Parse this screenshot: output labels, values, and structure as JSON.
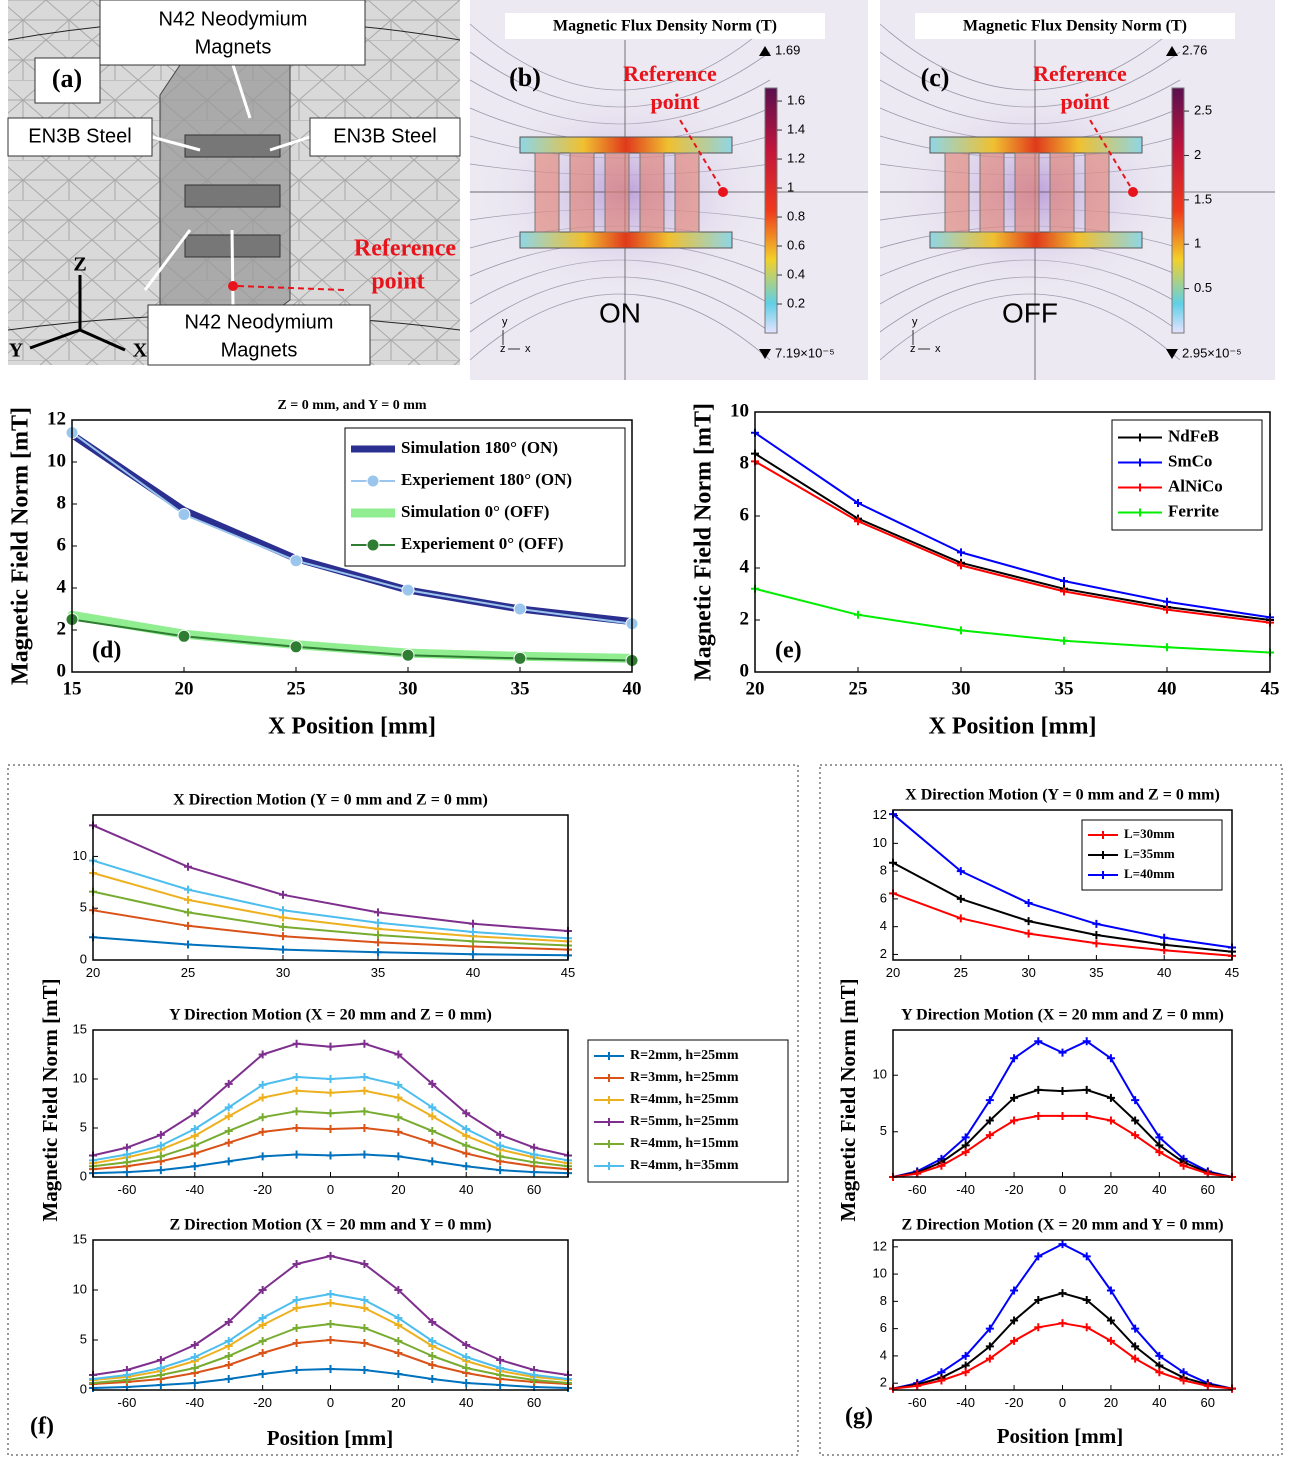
{
  "figure": {
    "a": {
      "label": "(a)",
      "magnets_top": [
        "N42 Neodymium",
        "Magnets"
      ],
      "steel_left": "EN3B Steel",
      "steel_right": "EN3B Steel",
      "magnets_bottom": [
        "N42 Neodymium",
        "Magnets"
      ],
      "reference": [
        "Reference",
        "point"
      ],
      "axes": [
        "Z",
        "Y",
        "X"
      ]
    },
    "b": {
      "label": "(b)",
      "title": "Magnetic Flux Density Norm (T)",
      "reference": [
        "Reference",
        "point"
      ],
      "max": 1.69,
      "min": {
        "value": 7.19e-05,
        "label": "7.19×10⁻⁵"
      },
      "colorbar_ticks": [
        0.2,
        0.4,
        0.6,
        0.8,
        1,
        1.2,
        1.4,
        1.6
      ],
      "state": "ON",
      "axes": [
        "y",
        "z",
        "x"
      ]
    },
    "c": {
      "label": "(c)",
      "title": "Magnetic Flux Density Norm (T)",
      "reference": [
        "Reference",
        "point"
      ],
      "max": 2.76,
      "min": {
        "value": 2.95e-05,
        "label": "2.95×10⁻⁵"
      },
      "colorbar_ticks": [
        0.5,
        1,
        1.5,
        2,
        2.5
      ],
      "state": "OFF",
      "axes": [
        "y",
        "z",
        "x"
      ]
    }
  },
  "groups": {
    "f": {
      "label": "(f)",
      "ylabel": "Magnetic Field Norm [mT]",
      "xlabel": "Position [mm]"
    },
    "g": {
      "label": "(g)",
      "ylabel": "Magnetic Field Norm [mT]",
      "xlabel": "Position [mm]"
    }
  },
  "chart_data": [
    {
      "type": "line",
      "title": "Z = 0 mm, and Y = 0 mm",
      "label": "(d)",
      "xlabel": "X Position [mm]",
      "ylabel": "Magnetic Field Norm [mT]",
      "x": [
        15,
        20,
        25,
        30,
        35,
        40
      ],
      "xlim": [
        15,
        40
      ],
      "xticks": [
        15,
        20,
        25,
        30,
        35,
        40
      ],
      "ylim": [
        0,
        12
      ],
      "yticks": [
        0,
        2,
        4,
        6,
        8,
        10,
        12
      ],
      "legend": "upper right",
      "series": [
        {
          "name": "Simulation 180° (ON)",
          "color": "#2b2f8f",
          "linewidth": 7,
          "values": [
            11.3,
            7.7,
            5.4,
            3.9,
            3.0,
            2.4
          ]
        },
        {
          "name": "Experiement 180° (ON)",
          "color": "#9ac5ec",
          "marker": "o",
          "values": [
            11.4,
            7.5,
            5.3,
            3.9,
            3.0,
            2.3
          ]
        },
        {
          "name": "Simulation 0° (OFF)",
          "color": "#90ee90",
          "linewidth": 9,
          "values": [
            2.7,
            1.8,
            1.3,
            0.9,
            0.75,
            0.65
          ]
        },
        {
          "name": "Experiement 0° (OFF)",
          "color": "#2e7d32",
          "marker": "o",
          "values": [
            2.5,
            1.7,
            1.2,
            0.8,
            0.65,
            0.55
          ]
        }
      ]
    },
    {
      "type": "line",
      "label": "(e)",
      "xlabel": "X Position [mm]",
      "ylabel": "Magnetic Field Norm [mT]",
      "x": [
        20,
        25,
        30,
        35,
        40,
        45
      ],
      "xlim": [
        20,
        45
      ],
      "xticks": [
        20,
        25,
        30,
        35,
        40,
        45
      ],
      "ylim": [
        0,
        10
      ],
      "yticks": [
        0,
        2,
        4,
        6,
        8,
        10
      ],
      "legend": "upper right",
      "series": [
        {
          "name": "NdFeB",
          "color": "#000000",
          "marker": "+",
          "values": [
            8.4,
            5.9,
            4.2,
            3.2,
            2.5,
            2.0
          ]
        },
        {
          "name": "SmCo",
          "color": "#0000ff",
          "marker": "+",
          "values": [
            9.2,
            6.5,
            4.6,
            3.5,
            2.7,
            2.1
          ]
        },
        {
          "name": "AlNiCo",
          "color": "#ff0000",
          "marker": "+",
          "values": [
            8.1,
            5.8,
            4.1,
            3.1,
            2.4,
            1.9
          ]
        },
        {
          "name": "Ferrite",
          "color": "#00ee00",
          "marker": "+",
          "values": [
            3.2,
            2.2,
            1.6,
            1.2,
            0.95,
            0.75
          ]
        }
      ]
    },
    {
      "type": "line",
      "title": "X Direction Motion (Y = 0 mm and Z = 0 mm)",
      "x": [
        20,
        25,
        30,
        35,
        40,
        45
      ],
      "xlim": [
        20,
        45
      ],
      "xticks": [
        20,
        25,
        30,
        35,
        40,
        45
      ],
      "ylim": [
        0,
        14
      ],
      "yticks": [
        0,
        5,
        10
      ],
      "series": [
        {
          "color": "#0072bd",
          "marker": "+",
          "values": [
            2.2,
            1.5,
            1.0,
            0.75,
            0.55,
            0.45
          ]
        },
        {
          "color": "#d95319",
          "marker": "+",
          "values": [
            4.8,
            3.3,
            2.3,
            1.7,
            1.3,
            1.0
          ]
        },
        {
          "color": "#edb120",
          "marker": "+",
          "values": [
            8.4,
            5.8,
            4.1,
            3.0,
            2.3,
            1.8
          ]
        },
        {
          "color": "#7e2f8e",
          "marker": "+",
          "values": [
            13.0,
            9.0,
            6.3,
            4.6,
            3.5,
            2.8
          ]
        },
        {
          "color": "#77ac30",
          "marker": "+",
          "values": [
            6.6,
            4.6,
            3.2,
            2.4,
            1.8,
            1.4
          ]
        },
        {
          "color": "#4dbeee",
          "marker": "+",
          "values": [
            9.6,
            6.8,
            4.8,
            3.6,
            2.7,
            2.1
          ]
        }
      ]
    },
    {
      "type": "line",
      "title": "Y Direction Motion (X = 20 mm and Z = 0 mm)",
      "x": [
        -70,
        -60,
        -50,
        -40,
        -30,
        -20,
        -10,
        0,
        10,
        20,
        30,
        40,
        50,
        60,
        70
      ],
      "xlim": [
        -70,
        70
      ],
      "xticks": [
        -60,
        -40,
        -20,
        0,
        20,
        40,
        60
      ],
      "ylim": [
        0,
        15
      ],
      "yticks": [
        0,
        5,
        10,
        15
      ],
      "legend": "outside right",
      "series": [
        {
          "name": "R=2mm, h=25mm",
          "color": "#0072bd",
          "marker": "+",
          "values": [
            0.4,
            0.5,
            0.7,
            1.1,
            1.6,
            2.1,
            2.3,
            2.2,
            2.3,
            2.1,
            1.6,
            1.1,
            0.7,
            0.5,
            0.4
          ]
        },
        {
          "name": "R=3mm, h=25mm",
          "color": "#d95319",
          "marker": "+",
          "values": [
            0.8,
            1.1,
            1.6,
            2.4,
            3.5,
            4.6,
            5.0,
            4.9,
            5.0,
            4.6,
            3.5,
            2.4,
            1.6,
            1.1,
            0.8
          ]
        },
        {
          "name": "R=4mm, h=25mm",
          "color": "#edb120",
          "marker": "+",
          "values": [
            1.4,
            2.0,
            2.8,
            4.2,
            6.2,
            8.1,
            8.8,
            8.6,
            8.8,
            8.1,
            6.2,
            4.2,
            2.8,
            2.0,
            1.4
          ]
        },
        {
          "name": "R=5mm, h=25mm",
          "color": "#7e2f8e",
          "marker": "+",
          "values": [
            2.2,
            3.0,
            4.3,
            6.5,
            9.5,
            12.5,
            13.6,
            13.3,
            13.6,
            12.5,
            9.5,
            6.5,
            4.3,
            3.0,
            2.2
          ]
        },
        {
          "name": "R=4mm, h=15mm",
          "color": "#77ac30",
          "marker": "+",
          "values": [
            1.1,
            1.5,
            2.1,
            3.2,
            4.7,
            6.1,
            6.7,
            6.5,
            6.7,
            6.1,
            4.7,
            3.2,
            2.1,
            1.5,
            1.1
          ]
        },
        {
          "name": "R=4mm, h=35mm",
          "color": "#4dbeee",
          "marker": "+",
          "values": [
            1.7,
            2.3,
            3.2,
            4.9,
            7.1,
            9.4,
            10.2,
            10.0,
            10.2,
            9.4,
            7.1,
            4.9,
            3.2,
            2.3,
            1.7
          ]
        }
      ]
    },
    {
      "type": "line",
      "title": "Z Direction Motion (X = 20 mm and Y = 0 mm)",
      "x": [
        -70,
        -60,
        -50,
        -40,
        -30,
        -20,
        -10,
        0,
        10,
        20,
        30,
        40,
        50,
        60,
        70
      ],
      "xlim": [
        -70,
        70
      ],
      "xticks": [
        -60,
        -40,
        -20,
        0,
        20,
        40,
        60
      ],
      "ylim": [
        0,
        15
      ],
      "yticks": [
        0,
        5,
        10,
        15
      ],
      "series": [
        {
          "color": "#0072bd",
          "marker": "+",
          "values": [
            0.2,
            0.3,
            0.5,
            0.7,
            1.1,
            1.6,
            2.0,
            2.1,
            2.0,
            1.6,
            1.1,
            0.7,
            0.5,
            0.3,
            0.2
          ]
        },
        {
          "color": "#d95319",
          "marker": "+",
          "values": [
            0.6,
            0.8,
            1.1,
            1.7,
            2.5,
            3.7,
            4.7,
            5.0,
            4.7,
            3.7,
            2.5,
            1.7,
            1.1,
            0.8,
            0.6
          ]
        },
        {
          "color": "#edb120",
          "marker": "+",
          "values": [
            1.0,
            1.3,
            1.9,
            2.9,
            4.4,
            6.5,
            8.2,
            8.7,
            8.2,
            6.5,
            4.4,
            2.9,
            1.9,
            1.3,
            1.0
          ]
        },
        {
          "color": "#7e2f8e",
          "marker": "+",
          "values": [
            1.5,
            2.0,
            3.0,
            4.5,
            6.8,
            10.0,
            12.6,
            13.4,
            12.6,
            10.0,
            6.8,
            4.5,
            3.0,
            2.0,
            1.5
          ]
        },
        {
          "color": "#77ac30",
          "marker": "+",
          "values": [
            0.7,
            1.0,
            1.5,
            2.2,
            3.4,
            4.9,
            6.2,
            6.6,
            6.2,
            4.9,
            3.4,
            2.2,
            1.5,
            1.0,
            0.7
          ]
        },
        {
          "color": "#4dbeee",
          "marker": "+",
          "values": [
            1.1,
            1.5,
            2.2,
            3.3,
            4.9,
            7.2,
            9.0,
            9.6,
            9.0,
            7.2,
            4.9,
            3.3,
            2.2,
            1.5,
            1.1
          ]
        }
      ]
    },
    {
      "type": "line",
      "title": "X Direction Motion (Y = 0 mm and Z = 0 mm)",
      "x": [
        20,
        25,
        30,
        35,
        40,
        45
      ],
      "xlim": [
        20,
        45
      ],
      "xticks": [
        20,
        25,
        30,
        35,
        40,
        45
      ],
      "ylim": [
        1.6,
        12.4
      ],
      "yticks": [
        2,
        4,
        6,
        8,
        10,
        12
      ],
      "legend": "upper right",
      "series": [
        {
          "name": "L=30mm",
          "color": "#ff0000",
          "marker": "+",
          "values": [
            6.4,
            4.6,
            3.5,
            2.8,
            2.3,
            1.9
          ]
        },
        {
          "name": "L=35mm",
          "color": "#000000",
          "marker": "+",
          "values": [
            8.6,
            6.0,
            4.4,
            3.4,
            2.7,
            2.2
          ]
        },
        {
          "name": "L=40mm",
          "color": "#0000ff",
          "marker": "+",
          "values": [
            12.1,
            8.0,
            5.7,
            4.2,
            3.2,
            2.5
          ]
        }
      ]
    },
    {
      "type": "line",
      "title": "Y Direction Motion (X = 20 mm and Z = 0 mm)",
      "x": [
        -70,
        -60,
        -50,
        -40,
        -30,
        -20,
        -10,
        0,
        10,
        20,
        30,
        40,
        50,
        60,
        70
      ],
      "xlim": [
        -70,
        70
      ],
      "xticks": [
        -60,
        -40,
        -20,
        0,
        20,
        40,
        60
      ],
      "ylim": [
        1,
        14
      ],
      "yticks": [
        5,
        10
      ],
      "series": [
        {
          "color": "#0000ff",
          "marker": "+",
          "values": [
            1.0,
            1.5,
            2.6,
            4.5,
            7.8,
            11.5,
            13.0,
            12.0,
            13.0,
            11.5,
            7.8,
            4.5,
            2.6,
            1.5,
            1.0
          ]
        },
        {
          "color": "#000000",
          "marker": "+",
          "values": [
            1.0,
            1.4,
            2.3,
            3.8,
            6.0,
            8.0,
            8.7,
            8.6,
            8.7,
            8.0,
            6.0,
            3.8,
            2.3,
            1.4,
            1.0
          ]
        },
        {
          "color": "#ff0000",
          "marker": "+",
          "values": [
            1.0,
            1.3,
            2.0,
            3.2,
            4.7,
            6.0,
            6.4,
            6.4,
            6.4,
            6.0,
            4.7,
            3.2,
            2.0,
            1.3,
            1.0
          ]
        }
      ]
    },
    {
      "type": "line",
      "title": "Z Direction Motion (X = 20 mm and Y = 0 mm)",
      "x": [
        -70,
        -60,
        -50,
        -40,
        -30,
        -20,
        -10,
        0,
        10,
        20,
        30,
        40,
        50,
        60,
        70
      ],
      "xlim": [
        -70,
        70
      ],
      "xticks": [
        -60,
        -40,
        -20,
        0,
        20,
        40,
        60
      ],
      "ylim": [
        1.5,
        12.5
      ],
      "yticks": [
        2,
        4,
        6,
        8,
        10,
        12
      ],
      "series": [
        {
          "color": "#0000ff",
          "marker": "+",
          "values": [
            1.6,
            2.0,
            2.8,
            4.0,
            6.0,
            8.8,
            11.3,
            12.2,
            11.3,
            8.8,
            6.0,
            4.0,
            2.8,
            2.0,
            1.6
          ]
        },
        {
          "color": "#000000",
          "marker": "+",
          "values": [
            1.6,
            1.9,
            2.4,
            3.3,
            4.7,
            6.6,
            8.1,
            8.6,
            8.1,
            6.6,
            4.7,
            3.3,
            2.4,
            1.9,
            1.6
          ]
        },
        {
          "color": "#ff0000",
          "marker": "+",
          "values": [
            1.6,
            1.8,
            2.2,
            2.8,
            3.8,
            5.1,
            6.1,
            6.4,
            6.1,
            5.1,
            3.8,
            2.8,
            2.2,
            1.8,
            1.6
          ]
        }
      ]
    }
  ]
}
